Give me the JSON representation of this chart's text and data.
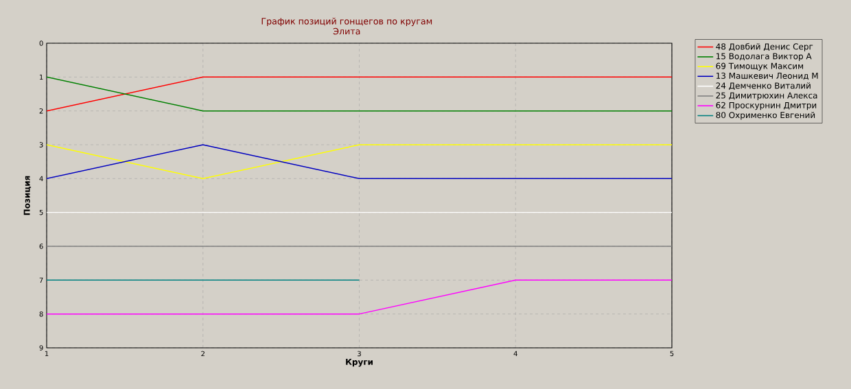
{
  "chart_data": {
    "type": "line",
    "title": "График позиций гонщегов по кругам",
    "subtitle": "Элита",
    "xlabel": "Круги",
    "ylabel": "Позиция",
    "x": [
      1,
      2,
      3,
      4,
      5
    ],
    "xlim": [
      1,
      5
    ],
    "xticks": [
      1,
      2,
      3,
      4,
      5
    ],
    "ylim": [
      9,
      0
    ],
    "yticks": [
      0,
      1,
      2,
      3,
      4,
      5,
      6,
      7,
      8,
      9
    ],
    "grid": true,
    "legend": "top right",
    "series": [
      {
        "name": "48 Довбий Денис Серг",
        "color": "#ff0000",
        "values": [
          2,
          1,
          1,
          1,
          1
        ]
      },
      {
        "name": "15 Водолага Виктор А",
        "color": "#008000",
        "values": [
          1,
          2,
          2,
          2,
          2
        ]
      },
      {
        "name": "69 Тимощук Максим",
        "color": "#ffff00",
        "values": [
          3,
          4,
          3,
          3,
          3
        ]
      },
      {
        "name": "13 Машкевич Леонид М",
        "color": "#0000c0",
        "values": [
          4,
          3,
          4,
          4,
          4
        ]
      },
      {
        "name": "24 Демченко Виталий",
        "color": "#ffffff",
        "values": [
          5,
          5,
          5,
          5,
          5
        ]
      },
      {
        "name": "25 Димитрюхин Алекса",
        "color": "#808080",
        "values": [
          6,
          6,
          6,
          6,
          6
        ]
      },
      {
        "name": "62 Проскурнин Дмитри",
        "color": "#ff00ff",
        "values": [
          8,
          8,
          8,
          7,
          7
        ]
      },
      {
        "name": "80 Охрименко Евгений",
        "color": "#008080",
        "values": [
          7,
          7,
          7,
          null,
          null
        ]
      }
    ]
  }
}
